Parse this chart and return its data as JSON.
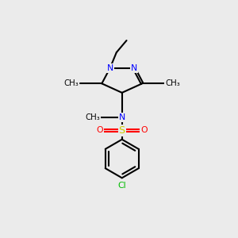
{
  "background_color": "#ebebeb",
  "bond_color": "#000000",
  "N_color": "#0000ff",
  "O_color": "#ff0000",
  "S_color": "#cccc00",
  "Cl_color": "#00bb00",
  "line_width": 1.5,
  "figsize": [
    3.0,
    3.0
  ],
  "dpi": 100,
  "xlim": [
    0,
    10
  ],
  "ylim": [
    0,
    10
  ]
}
